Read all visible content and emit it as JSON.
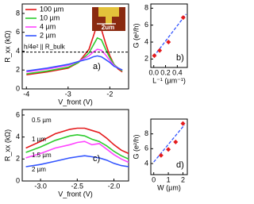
{
  "chart_data": [
    {
      "type": "line",
      "panel_label": "a)",
      "xlabel": "V_front (V)",
      "ylabel": "R_xx (kΩ)",
      "x": [
        -4.0,
        -3.5,
        -3.0,
        -2.75,
        -2.5,
        -2.4,
        -2.3,
        -2.2,
        -2.1,
        -2.0,
        -1.9,
        -1.8,
        -1.7
      ],
      "series": [
        {
          "name": "100 µm",
          "color": "#e41a1c",
          "values": [
            1.5,
            1.8,
            2.2,
            2.8,
            4.2,
            5.5,
            6.9,
            6.3,
            4.8,
            3.5,
            2.6,
            2.1,
            1.8
          ]
        },
        {
          "name": "10 µm",
          "color": "#2ecc2e",
          "values": [
            1.6,
            1.9,
            2.3,
            2.8,
            3.8,
            4.6,
            5.4,
            5.2,
            4.2,
            3.3,
            2.6,
            2.2,
            1.9
          ]
        },
        {
          "name": "4 µm",
          "color": "#ff44ff",
          "values": [
            1.8,
            2.1,
            2.5,
            2.9,
            3.5,
            3.9,
            4.2,
            4.1,
            3.6,
            3.0,
            2.5,
            2.2,
            2.0
          ]
        },
        {
          "name": "2 µm",
          "color": "#3355ff",
          "values": [
            1.9,
            2.2,
            2.6,
            2.9,
            3.2,
            3.4,
            3.5,
            3.4,
            3.1,
            2.8,
            2.4,
            2.2,
            2.0
          ]
        }
      ],
      "hline": 3.9,
      "hline_label": "h/4e² || R_bulk",
      "inset_label": "2um",
      "xlim": [
        -4.1,
        -1.55
      ],
      "ylim": [
        0,
        9
      ],
      "xticks": [
        -4,
        -3,
        -2
      ],
      "yticks": [
        0,
        2,
        4,
        6,
        8
      ]
    },
    {
      "type": "scatter",
      "panel_label": "b)",
      "xlabel": "L⁻¹ (µm⁻¹)",
      "ylabel": "G (e²/h)",
      "x": [
        0.01,
        0.1,
        0.25,
        0.5
      ],
      "values": [
        2.4,
        3.0,
        4.0,
        6.9
      ],
      "color": "#e41a1c",
      "fit": {
        "x": [
          0.0,
          0.55
        ],
        "y": [
          2.3,
          7.3
        ],
        "color": "#3355ff"
      },
      "xlim": [
        -0.05,
        0.57
      ],
      "ylim": [
        1,
        8.5
      ],
      "xticks": [
        {
          "value": 0,
          "label": "0.0"
        },
        0.2,
        0.4
      ],
      "yticks": [
        2,
        4,
        6,
        8
      ]
    },
    {
      "type": "line",
      "panel_label": "c)",
      "xlabel": "V_front (V)",
      "ylabel": "R_xx (kΩ)",
      "x": [
        -3.2,
        -3.0,
        -2.8,
        -2.6,
        -2.5,
        -2.4,
        -2.3,
        -2.2,
        -2.1,
        -2.0,
        -1.9,
        -1.8
      ],
      "series": [
        {
          "name": "0.5 µm",
          "color": "#e41a1c",
          "values": [
            3.0,
            3.6,
            4.3,
            4.7,
            4.8,
            4.8,
            4.6,
            4.4,
            3.9,
            3.3,
            2.8,
            2.5
          ]
        },
        {
          "name": "1 µm",
          "color": "#2ecc2e",
          "values": [
            2.6,
            3.1,
            3.7,
            4.1,
            4.2,
            4.1,
            3.8,
            3.6,
            3.2,
            2.7,
            2.3,
            2.0
          ]
        },
        {
          "name": "1.5 µm",
          "color": "#ff44ff",
          "values": [
            2.1,
            2.5,
            3.0,
            3.3,
            3.5,
            3.6,
            3.3,
            3.4,
            2.9,
            2.4,
            2.0,
            1.7
          ]
        },
        {
          "name": "2 µm",
          "color": "#3355ff",
          "values": [
            1.3,
            1.5,
            1.8,
            2.1,
            2.2,
            2.3,
            2.2,
            2.1,
            1.9,
            1.6,
            1.4,
            1.3
          ]
        }
      ],
      "xlim": [
        -3.25,
        -1.8
      ],
      "ylim": [
        0,
        6.5
      ],
      "xticks": [
        {
          "value": -3,
          "label": "-3.0"
        },
        -2.5,
        {
          "value": -2,
          "label": "-2.0"
        }
      ],
      "yticks": [
        0,
        2,
        4,
        6
      ]
    },
    {
      "type": "scatter",
      "panel_label": "d)",
      "xlabel": "W (µm)",
      "ylabel": "G (e²/h)",
      "x": [
        0.5,
        1,
        1.5,
        2
      ],
      "values": [
        5.1,
        5.9,
        6.9,
        9.4
      ],
      "color": "#e41a1c",
      "fit": {
        "x": [
          0.0,
          2.1
        ],
        "y": [
          4.2,
          9.2
        ],
        "color": "#3355ff"
      },
      "xlim": [
        -0.2,
        2.3
      ],
      "ylim": [
        2.5,
        10
      ],
      "xticks": [
        0,
        1,
        2
      ],
      "yticks": [
        4,
        6,
        8
      ]
    }
  ]
}
